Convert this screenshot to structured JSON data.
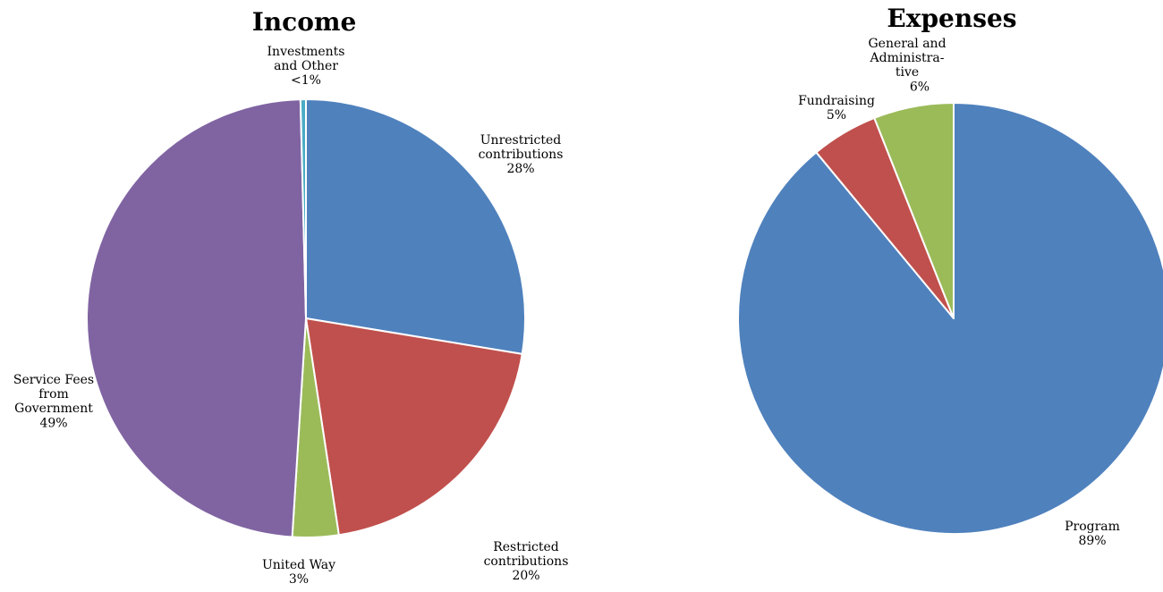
{
  "chart_data": [
    {
      "type": "pie",
      "title": "Income",
      "slices": [
        {
          "name": "Unrestricted contributions",
          "value": 27.6,
          "percent_label": "28%",
          "color": "#4F81BD",
          "label_lines": [
            "Unrestricted",
            "contributions"
          ]
        },
        {
          "name": "Restricted contributions",
          "value": 20.0,
          "percent_label": "20%",
          "color": "#C0504D",
          "label_lines": [
            "Restricted",
            "contributions"
          ]
        },
        {
          "name": "United Way",
          "value": 3.4,
          "percent_label": "3%",
          "color": "#9BBB59",
          "label_lines": [
            "United Way"
          ]
        },
        {
          "name": "Service Fees from Government",
          "value": 48.6,
          "percent_label": "49%",
          "color": "#8064A2",
          "label_lines": [
            "Service Fees",
            "from",
            "Government"
          ]
        },
        {
          "name": "Investments and Other",
          "value": 0.4,
          "percent_label": "<1%",
          "color": "#4BACC6",
          "label_lines": [
            "Investments",
            "and Other"
          ]
        }
      ]
    },
    {
      "type": "pie",
      "title": "Expenses",
      "slices": [
        {
          "name": "Program",
          "value": 89,
          "percent_label": "89%",
          "color": "#4F81BD",
          "label_lines": [
            "Program"
          ]
        },
        {
          "name": "Fundraising",
          "value": 5,
          "percent_label": "5%",
          "color": "#C0504D",
          "label_lines": [
            "Fundraising"
          ]
        },
        {
          "name": "General and Administrative",
          "value": 6,
          "percent_label": "6%",
          "color": "#9BBB59",
          "label_lines": [
            "General and",
            "Administra-",
            "tive"
          ]
        }
      ]
    }
  ]
}
